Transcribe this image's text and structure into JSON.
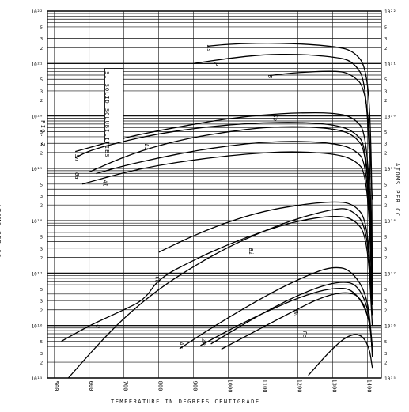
{
  "chart_data": {
    "type": "line",
    "title": "Si SOLID SOLUBILITIES",
    "figure": "FIG. 2",
    "xlabel": "TEMPERATURE IN DEGREES CENTIGRADE",
    "ylabel": "ATOMS PER CC",
    "xlim": [
      480,
      1440
    ],
    "ylim_exponent": [
      15,
      22
    ],
    "x_ticks": [
      500,
      600,
      700,
      800,
      900,
      1000,
      1100,
      1200,
      1300,
      1400
    ],
    "y_ticks_left": [
      "10¹⁵",
      "10¹⁶",
      "10¹⁷",
      "10¹⁸",
      "10¹⁹",
      "10²⁰",
      "10²¹",
      "10²²"
    ],
    "y_ticks_right": [
      "10¹⁵",
      "10¹⁶",
      "10¹⁷",
      "10¹⁸",
      "10¹⁹",
      "10²⁰",
      "10²¹",
      "10²²"
    ],
    "minor_tick_labels": [
      "2",
      "3",
      "5"
    ],
    "y_scale": "log",
    "grid": true,
    "series": [
      {
        "name": "As",
        "label_at": [
          940,
          21.35
        ],
        "points": [
          [
            940,
            21.33
          ],
          [
            1000,
            21.37
          ],
          [
            1100,
            21.39
          ],
          [
            1200,
            21.38
          ],
          [
            1300,
            21.33
          ],
          [
            1360,
            21.25
          ],
          [
            1400,
            20.9
          ],
          [
            1412,
            19.3
          ],
          [
            1414,
            16.9
          ]
        ]
      },
      {
        "name": "P",
        "label_at": [
          960,
          21.02
        ],
        "points": [
          [
            900,
            21.0
          ],
          [
            1000,
            21.1
          ],
          [
            1100,
            21.17
          ],
          [
            1200,
            21.18
          ],
          [
            1300,
            21.13
          ],
          [
            1360,
            21.05
          ],
          [
            1400,
            20.6
          ],
          [
            1414,
            17.2
          ]
        ]
      },
      {
        "name": "B",
        "label_at": [
          1115,
          20.78
        ],
        "points": [
          [
            1120,
            20.77
          ],
          [
            1200,
            20.83
          ],
          [
            1300,
            20.86
          ],
          [
            1350,
            20.82
          ],
          [
            1400,
            20.5
          ],
          [
            1414,
            18.4
          ]
        ]
      },
      {
        "name": "Sb",
        "label_at": [
          1130,
          20.03
        ],
        "points": [
          [
            560,
            19.32
          ],
          [
            700,
            19.58
          ],
          [
            800,
            19.72
          ],
          [
            900,
            19.84
          ],
          [
            1000,
            19.95
          ],
          [
            1100,
            20.02
          ],
          [
            1200,
            20.06
          ],
          [
            1300,
            20.06
          ],
          [
            1360,
            19.98
          ],
          [
            1400,
            19.65
          ],
          [
            1414,
            17.0
          ]
        ]
      },
      {
        "name": "Sn",
        "label_at": [
          560,
          19.27
        ],
        "points": [
          [
            560,
            19.2
          ],
          [
            600,
            19.34
          ],
          [
            700,
            19.52
          ],
          [
            800,
            19.66
          ],
          [
            900,
            19.76
          ],
          [
            1000,
            19.83
          ],
          [
            1100,
            19.87
          ],
          [
            1200,
            19.88
          ],
          [
            1300,
            19.84
          ],
          [
            1360,
            19.72
          ],
          [
            1400,
            19.4
          ],
          [
            1414,
            16.8
          ]
        ]
      },
      {
        "name": "Li",
        "label_at": [
          760,
          19.47
        ],
        "points": [
          [
            600,
            18.93
          ],
          [
            700,
            19.22
          ],
          [
            800,
            19.44
          ],
          [
            900,
            19.59
          ],
          [
            1000,
            19.7
          ],
          [
            1100,
            19.78
          ],
          [
            1200,
            19.8
          ],
          [
            1300,
            19.76
          ],
          [
            1360,
            19.65
          ],
          [
            1400,
            19.3
          ],
          [
            1414,
            16.7
          ]
        ]
      },
      {
        "name": "Ga",
        "label_at": [
          560,
          18.92
        ],
        "points": [
          [
            620,
            18.9
          ],
          [
            700,
            19.05
          ],
          [
            800,
            19.2
          ],
          [
            900,
            19.33
          ],
          [
            1000,
            19.43
          ],
          [
            1100,
            19.5
          ],
          [
            1200,
            19.52
          ],
          [
            1300,
            19.48
          ],
          [
            1360,
            19.38
          ],
          [
            1400,
            19.1
          ],
          [
            1414,
            16.6
          ]
        ]
      },
      {
        "name": "Al",
        "label_at": [
          640,
          18.78
        ],
        "points": [
          [
            580,
            18.7
          ],
          [
            700,
            18.92
          ],
          [
            800,
            19.06
          ],
          [
            900,
            19.16
          ],
          [
            1000,
            19.24
          ],
          [
            1100,
            19.3
          ],
          [
            1200,
            19.32
          ],
          [
            1300,
            19.28
          ],
          [
            1360,
            19.18
          ],
          [
            1400,
            18.9
          ],
          [
            1414,
            16.5
          ]
        ]
      },
      {
        "name": "Bi",
        "label_at": [
          1060,
          17.48
        ],
        "points": [
          [
            800,
            17.4
          ],
          [
            900,
            17.72
          ],
          [
            1000,
            17.98
          ],
          [
            1100,
            18.18
          ],
          [
            1200,
            18.3
          ],
          [
            1300,
            18.37
          ],
          [
            1360,
            18.33
          ],
          [
            1400,
            18.0
          ],
          [
            1414,
            16.4
          ]
        ]
      },
      {
        "name": "Cu",
        "label_at": [
          790,
          16.94
        ],
        "points": [
          [
            540,
            15.0
          ],
          [
            620,
            15.6
          ],
          [
            700,
            16.15
          ],
          [
            800,
            16.7
          ],
          [
            900,
            17.13
          ],
          [
            1000,
            17.5
          ],
          [
            1100,
            17.8
          ],
          [
            1200,
            18.05
          ],
          [
            1300,
            18.22
          ],
          [
            1350,
            18.24
          ],
          [
            1400,
            17.9
          ],
          [
            1414,
            16.2
          ]
        ]
      },
      {
        "name": "O",
        "label_at": [
          620,
          16.02
        ],
        "points": [
          [
            520,
            15.7
          ],
          [
            600,
            16.0
          ],
          [
            700,
            16.3
          ],
          [
            760,
            16.5
          ],
          [
            800,
            16.9
          ],
          [
            900,
            17.25
          ],
          [
            1000,
            17.55
          ],
          [
            1100,
            17.8
          ],
          [
            1200,
            18.0
          ],
          [
            1300,
            18.1
          ],
          [
            1360,
            18.05
          ],
          [
            1400,
            17.7
          ],
          [
            1414,
            16.0
          ]
        ]
      },
      {
        "name": "Au",
        "label_at": [
          860,
          15.69
        ],
        "points": [
          [
            860,
            15.56
          ],
          [
            950,
            15.95
          ],
          [
            1050,
            16.35
          ],
          [
            1150,
            16.72
          ],
          [
            1250,
            17.02
          ],
          [
            1300,
            17.12
          ],
          [
            1350,
            17.08
          ],
          [
            1400,
            16.6
          ],
          [
            1414,
            15.6
          ]
        ]
      },
      {
        "name": "Mn",
        "label_at": [
          1190,
          16.3
        ],
        "points": [
          [
            950,
            15.65
          ],
          [
            1050,
            16.05
          ],
          [
            1150,
            16.42
          ],
          [
            1250,
            16.72
          ],
          [
            1320,
            16.84
          ],
          [
            1370,
            16.8
          ],
          [
            1405,
            16.3
          ],
          [
            1414,
            15.5
          ]
        ]
      },
      {
        "name": "Fe",
        "label_at": [
          1215,
          15.9
        ],
        "points": [
          [
            980,
            15.55
          ],
          [
            1080,
            15.9
          ],
          [
            1180,
            16.25
          ],
          [
            1270,
            16.55
          ],
          [
            1340,
            16.65
          ],
          [
            1380,
            16.55
          ],
          [
            1408,
            16.1
          ],
          [
            1414,
            15.4
          ]
        ]
      },
      {
        "name": "Zn",
        "label_at": [
          925,
          15.75
        ],
        "points": [
          [
            920,
            15.62
          ],
          [
            1020,
            15.98
          ],
          [
            1120,
            16.3
          ],
          [
            1220,
            16.58
          ],
          [
            1300,
            16.72
          ],
          [
            1360,
            16.7
          ],
          [
            1405,
            16.2
          ],
          [
            1414,
            15.5
          ]
        ]
      },
      {
        "name": "",
        "label_at": [
          1240,
          15.4
        ],
        "points": [
          [
            1230,
            15.05
          ],
          [
            1290,
            15.5
          ],
          [
            1340,
            15.8
          ],
          [
            1380,
            15.85
          ],
          [
            1405,
            15.6
          ],
          [
            1414,
            15.2
          ]
        ]
      }
    ]
  }
}
